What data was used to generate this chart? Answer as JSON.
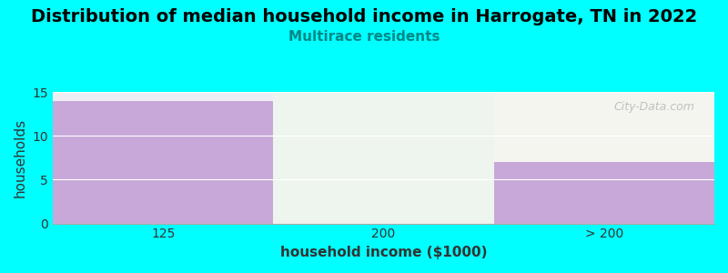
{
  "title": "Distribution of median household income in Harrogate, TN in 2022",
  "subtitle": "Multirace residents",
  "categories": [
    "125",
    "200",
    "> 200"
  ],
  "values": [
    14,
    0,
    7
  ],
  "bar_colors": [
    "#c8a8d8",
    "#ddeedd",
    "#c8a8d8"
  ],
  "section_bg_colors": [
    "#f0eef5",
    "#eef5ee",
    "#f5f5f0"
  ],
  "xlabel": "household income ($1000)",
  "ylabel": "households",
  "ylim": [
    0,
    15
  ],
  "yticks": [
    0,
    5,
    10,
    15
  ],
  "background_color": "#00ffff",
  "title_fontsize": 14,
  "subtitle_fontsize": 11,
  "subtitle_color": "#008888",
  "axis_label_fontsize": 11,
  "tick_fontsize": 10,
  "watermark": "City-Data.com"
}
